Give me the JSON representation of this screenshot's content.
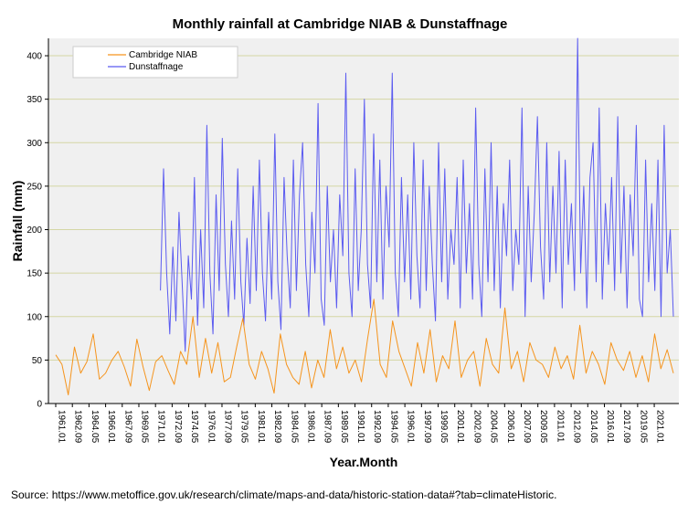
{
  "colors": {
    "background": "#ffffff",
    "plot_background": "#f0f0f0",
    "gridline": "#d4d6a4",
    "cambridge": "#f5941d",
    "dunstaffnage": "#5b5bf0",
    "text": "#000000"
  },
  "source_text": "Source: https://www.metoffice.gov.uk/research/climate/maps-and-data/historic-station-data#?tab=climateHistoric.",
  "chart_data": {
    "type": "line",
    "title": "Monthly rainfall at Cambridge NIAB & Dunstaffnage",
    "xlabel": "Year.Month",
    "ylabel": "Rainfall (mm)",
    "ylim": [
      0,
      420
    ],
    "yticks": [
      0,
      50,
      100,
      150,
      200,
      250,
      300,
      350,
      400
    ],
    "grid": "horizontal",
    "legend_position": "top-left",
    "xrange": [
      "1961.01",
      "2022.12"
    ],
    "xtick_labels": [
      "1961.01",
      "1962.09",
      "1964.05",
      "1966.01",
      "1967.09",
      "1969.05",
      "1971.01",
      "1972.09",
      "1974.05",
      "1976.01",
      "1977.09",
      "1979.05",
      "1981.01",
      "1982.09",
      "1984.05",
      "1986.01",
      "1987.09",
      "1989.05",
      "1991.01",
      "1992.09",
      "1994.05",
      "1996.01",
      "1997.09",
      "1999.05",
      "2001.01",
      "2002.09",
      "2004.05",
      "2006.01",
      "2007.09",
      "2009.05",
      "2011.01",
      "2012.09",
      "2014.05",
      "2016.01",
      "2017.09",
      "2019.05",
      "2021.01"
    ],
    "series": [
      {
        "name": "Cambridge NIAB",
        "start": "1961.01",
        "values": [
          56,
          45,
          10,
          65,
          35,
          48,
          80,
          28,
          35,
          50,
          60,
          42,
          20,
          74,
          42,
          15,
          48,
          55,
          38,
          22,
          60,
          45,
          100,
          30,
          75,
          35,
          70,
          25,
          30,
          65,
          98,
          45,
          28,
          60,
          40,
          12,
          80,
          45,
          30,
          22,
          60,
          18,
          50,
          30,
          85,
          40,
          65,
          35,
          50,
          25,
          75,
          120,
          45,
          30,
          95,
          60,
          40,
          20,
          70,
          35,
          85,
          25,
          55,
          40,
          95,
          30,
          50,
          60,
          20,
          75,
          45,
          35,
          110,
          40,
          60,
          25,
          70,
          50,
          45,
          30,
          65,
          40,
          55,
          28,
          90,
          35,
          60,
          45,
          22,
          70,
          50,
          38,
          60,
          30,
          55,
          25,
          80,
          40,
          62,
          35
        ]
      },
      {
        "name": "Dunstaffnage",
        "start": "1971.07",
        "values": [
          130,
          270,
          150,
          80,
          180,
          95,
          220,
          140,
          60,
          170,
          120,
          260,
          90,
          200,
          110,
          320,
          150,
          80,
          240,
          130,
          305,
          160,
          100,
          210,
          120,
          270,
          140,
          90,
          190,
          115,
          250,
          130,
          280,
          150,
          95,
          220,
          120,
          310,
          140,
          85,
          260,
          170,
          110,
          280,
          130,
          240,
          300,
          160,
          100,
          220,
          150,
          345,
          120,
          90,
          250,
          140,
          200,
          110,
          240,
          170,
          380,
          150,
          100,
          270,
          130,
          200,
          350,
          160,
          110,
          310,
          140,
          280,
          120,
          250,
          180,
          380,
          150,
          100,
          260,
          140,
          240,
          120,
          300,
          170,
          110,
          280,
          130,
          250,
          160,
          95,
          300,
          140,
          270,
          120,
          200,
          160,
          260,
          110,
          280,
          150,
          230,
          120,
          340,
          160,
          100,
          270,
          140,
          300,
          130,
          250,
          110,
          230,
          170,
          280,
          130,
          200,
          160,
          340,
          100,
          250,
          140,
          220,
          330,
          180,
          120,
          300,
          140,
          250,
          150,
          290,
          110,
          280,
          160,
          230,
          130,
          420,
          150,
          250,
          110,
          260,
          300,
          140,
          340,
          120,
          230,
          160,
          260,
          130,
          330,
          150,
          250,
          110,
          240,
          170,
          320,
          120,
          100,
          280,
          140,
          230,
          130,
          280,
          100,
          320,
          150,
          200,
          100
        ]
      }
    ]
  }
}
